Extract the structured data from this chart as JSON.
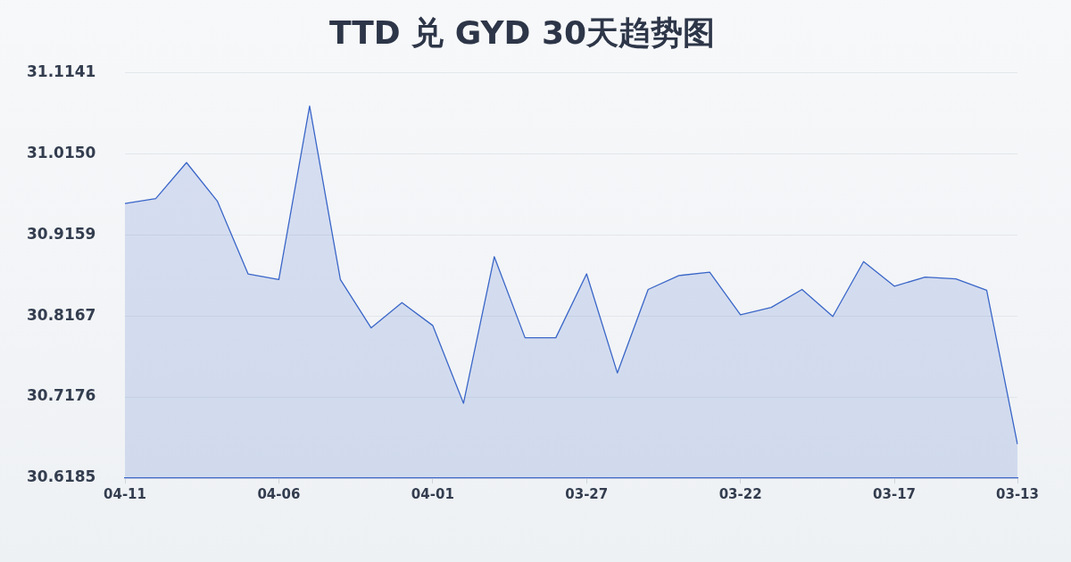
{
  "chart_data": {
    "type": "area",
    "title": "TTD 兑 GYD 30天趋势图",
    "categories": [
      "04-11",
      null,
      null,
      null,
      null,
      "04-06",
      null,
      null,
      null,
      null,
      "04-01",
      null,
      null,
      null,
      null,
      "03-27",
      null,
      null,
      null,
      null,
      "03-22",
      null,
      null,
      null,
      null,
      "03-17",
      null,
      null,
      null,
      "03-13"
    ],
    "values": [
      30.954,
      30.96,
      31.004,
      30.957,
      30.868,
      30.861,
      31.073,
      30.861,
      30.802,
      30.833,
      30.805,
      30.71,
      30.889,
      30.79,
      30.79,
      30.868,
      30.747,
      30.849,
      30.866,
      30.87,
      30.818,
      30.827,
      30.849,
      30.816,
      30.883,
      30.853,
      30.864,
      30.862,
      30.848,
      30.66
    ],
    "color": "#3a66c8",
    "ylim": [
      30.6185,
      31.1141
    ],
    "yticks": [
      30.6185,
      30.7176,
      30.8167,
      30.9159,
      {
        "value": 31.015,
        "label": "31.0150"
      },
      31.1141
    ],
    "grid": "y",
    "legend": false
  }
}
